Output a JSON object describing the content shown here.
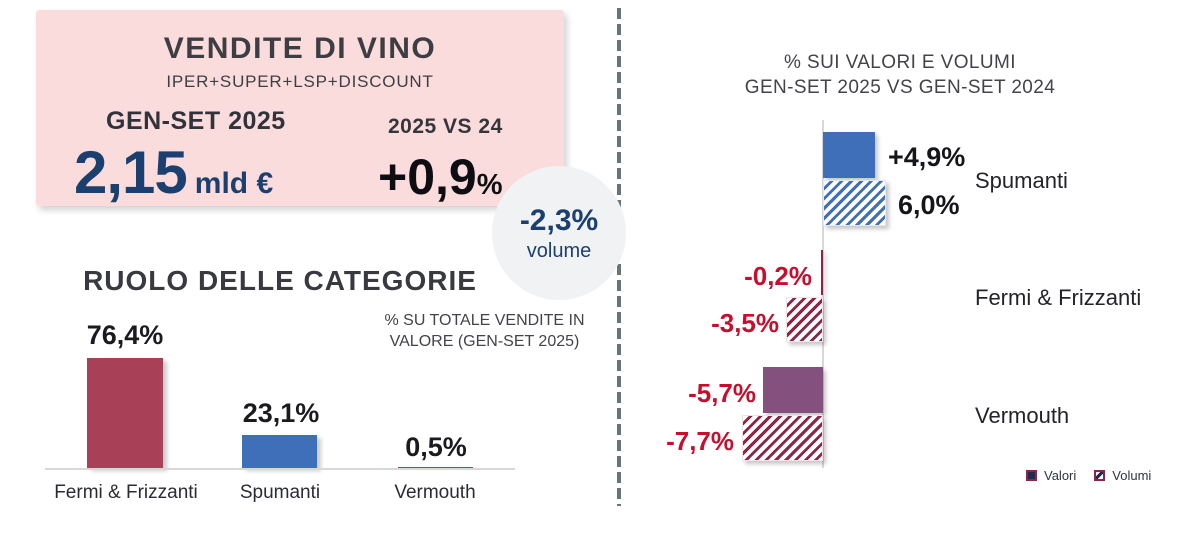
{
  "summary_card": {
    "title": "VENDITE DI VINO",
    "subtitle": "IPER+SUPER+LSP+DISCOUNT",
    "period_label": "GEN-SET 2025",
    "value": "2,15",
    "value_unit": "mld €",
    "vs_label": "2025 VS 24",
    "vs_value": "+0,9",
    "vs_unit": "%"
  },
  "volume_badge": {
    "value": "-2,3%",
    "label": "volume"
  },
  "left_chart": {
    "title": "RUOLO DELLE CATEGORIE",
    "note_line1": "% SU TOTALE VENDITE IN",
    "note_line2": "VALORE (GEN-SET 2025)"
  },
  "right_chart": {
    "title_line1": "% SUI VALORI E VOLUMI",
    "title_line2": "GEN-SET 2025 VS GEN-SET 2024",
    "legend": {
      "valori": "Valori",
      "volumi": "Volumi"
    }
  },
  "colors": {
    "card_bg": "#fbdcdc",
    "navy": "#1b4070",
    "maroon_bar": "#a84158",
    "blue_bar": "#3f6fb8",
    "purple_bar": "#84517e",
    "hatch_maroon": "#8f2545",
    "red_label": "#c50f2d",
    "divider_gray": "#68737c",
    "axis_gray": "#d8d8d8",
    "circle_bg": "#f0f2f4"
  },
  "chart_data": [
    {
      "type": "bar",
      "title": "RUOLO DELLE CATEGORIE",
      "note": "% SU TOTALE VENDITE IN VALORE (GEN-SET 2025)",
      "categories": [
        "Fermi & Frizzanti",
        "Spumanti",
        "Vermouth"
      ],
      "values": [
        76.4,
        23.1,
        0.5
      ],
      "value_labels": [
        "76,4%",
        "23,1%",
        "0,5%"
      ],
      "bar_colors": [
        "#a84158",
        "#3f6fb8",
        "#a84158"
      ],
      "unit": "%",
      "ylim": [
        0,
        80
      ],
      "grid": false
    },
    {
      "type": "bar",
      "orientation": "horizontal",
      "title": "% SUI VALORI E VOLUMI GEN-SET 2025 VS GEN-SET 2024",
      "categories": [
        "Spumanti",
        "Fermi & Frizzanti",
        "Vermouth"
      ],
      "series": [
        {
          "name": "Valori",
          "values": [
            4.9,
            -0.2,
            -5.7
          ],
          "labels": [
            "+4,9%",
            "-0,2%",
            "-5,7%"
          ],
          "label_colors": [
            "#16161a",
            "#c50f2d",
            "#c50f2d"
          ]
        },
        {
          "name": "Volumi",
          "values": [
            6.0,
            -3.5,
            -7.7
          ],
          "labels": [
            "6,0%",
            "-3,5%",
            "-7,7%"
          ],
          "label_colors": [
            "#16161a",
            "#c50f2d",
            "#c50f2d"
          ]
        }
      ],
      "xlim": [
        -8,
        7
      ],
      "legend_position": "bottom-right",
      "grid": false
    }
  ]
}
